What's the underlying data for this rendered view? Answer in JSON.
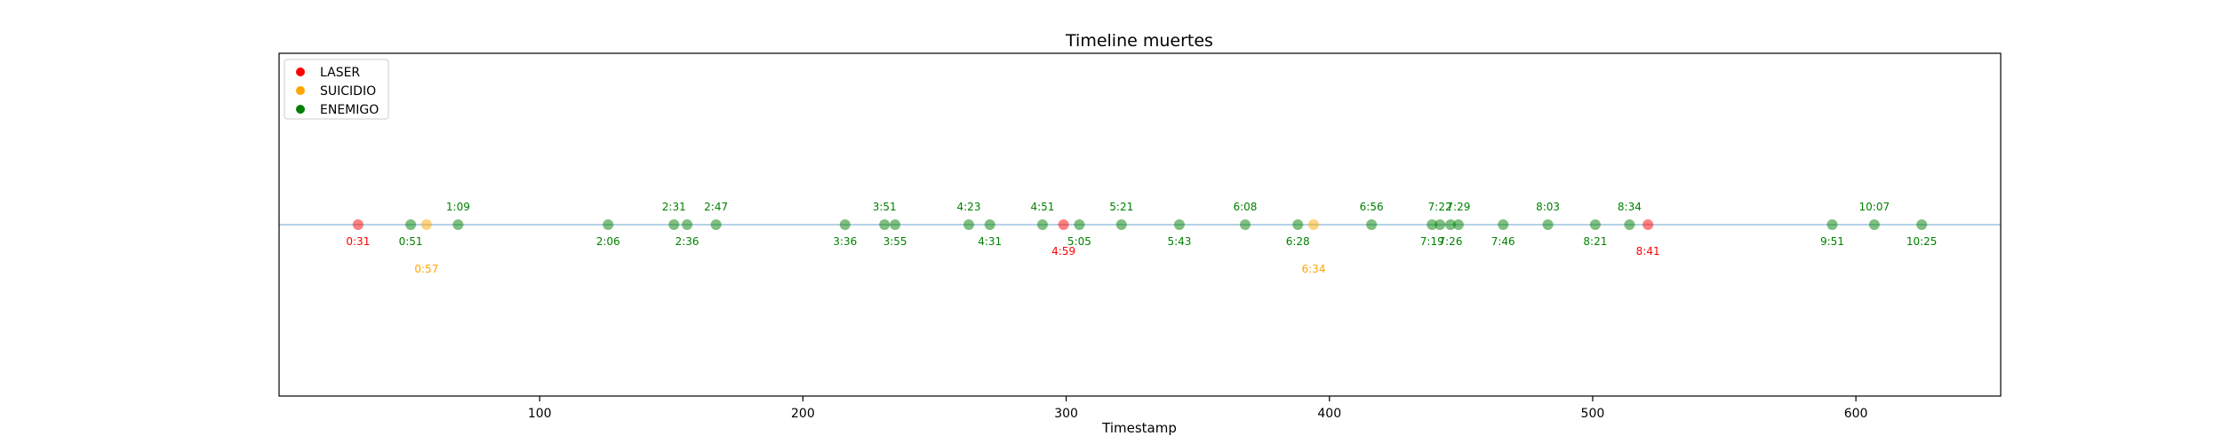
{
  "chart_data": {
    "type": "scatter",
    "title": "Timeline muertes",
    "xlabel": "Timestamp",
    "ylabel": "",
    "xlim": [
      1,
      655
    ],
    "xticks": [
      100,
      200,
      300,
      400,
      500,
      600
    ],
    "grid": false,
    "legend_position": "top-left",
    "series": [
      {
        "name": "LASER",
        "color": "#ff0000",
        "points": [
          {
            "x": 31,
            "label": "0:31"
          },
          {
            "x": 299,
            "label": "4:59"
          },
          {
            "x": 521,
            "label": "8:41"
          }
        ]
      },
      {
        "name": "SUICIDIO",
        "color": "#ffa500",
        "points": [
          {
            "x": 57,
            "label": "0:57"
          },
          {
            "x": 394,
            "label": "6:34"
          }
        ]
      },
      {
        "name": "ENEMIGO",
        "color": "#008000",
        "points": [
          {
            "x": 51,
            "label": "0:51"
          },
          {
            "x": 69,
            "label": "1:09"
          },
          {
            "x": 126,
            "label": "2:06"
          },
          {
            "x": 151,
            "label": "2:31"
          },
          {
            "x": 156,
            "label": "2:36"
          },
          {
            "x": 167,
            "label": "2:47"
          },
          {
            "x": 216,
            "label": "3:36"
          },
          {
            "x": 231,
            "label": "3:51"
          },
          {
            "x": 235,
            "label": "3:55"
          },
          {
            "x": 263,
            "label": "4:23"
          },
          {
            "x": 271,
            "label": "4:31"
          },
          {
            "x": 291,
            "label": "4:51"
          },
          {
            "x": 305,
            "label": "5:05"
          },
          {
            "x": 321,
            "label": "5:21"
          },
          {
            "x": 343,
            "label": "5:43"
          },
          {
            "x": 368,
            "label": "6:08"
          },
          {
            "x": 388,
            "label": "6:28"
          },
          {
            "x": 416,
            "label": "6:56"
          },
          {
            "x": 439,
            "label": "7:19"
          },
          {
            "x": 442,
            "label": "7:22"
          },
          {
            "x": 446,
            "label": "7:26"
          },
          {
            "x": 449,
            "label": "7:29"
          },
          {
            "x": 466,
            "label": "7:46"
          },
          {
            "x": 483,
            "label": "8:03"
          },
          {
            "x": 501,
            "label": "8:21"
          },
          {
            "x": 514,
            "label": "8:34"
          },
          {
            "x": 591,
            "label": "9:51"
          },
          {
            "x": 607,
            "label": "10:07"
          },
          {
            "x": 625,
            "label": "10:25"
          }
        ]
      }
    ]
  }
}
